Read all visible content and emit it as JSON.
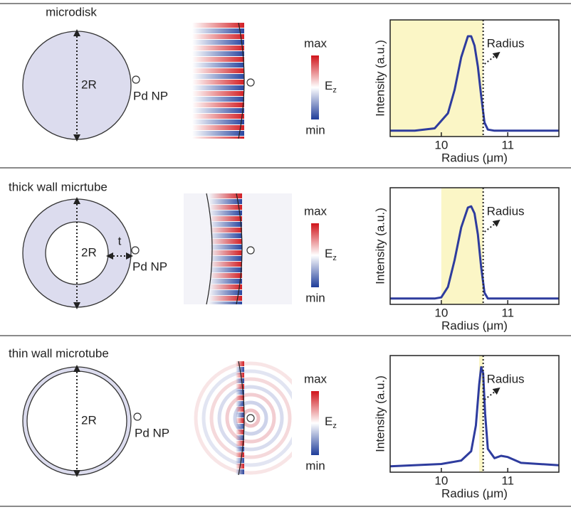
{
  "panels": [
    {
      "title": "microdisk",
      "diameter_label": "2R",
      "np_label": "Pd NP",
      "colorbar": {
        "max": "max",
        "min": "min",
        "field": "E",
        "field_sub": "z"
      },
      "plot": {
        "type": "line",
        "xlabel": "Radius (μm)",
        "ylabel": "Intensity (a.u.)",
        "marker_label": "Radius",
        "xlim": [
          9.23,
          11.77
        ],
        "ylim": [
          0,
          1
        ],
        "xticks": [
          10,
          11
        ],
        "shade": [
          9.23,
          10.63
        ],
        "marker_x": 10.63,
        "color": "#2e3c9e",
        "x": [
          9.23,
          9.6,
          9.9,
          10.1,
          10.2,
          10.3,
          10.4,
          10.45,
          10.5,
          10.55,
          10.6,
          10.65,
          10.7,
          10.8,
          11.0,
          11.77
        ],
        "y": [
          0.05,
          0.05,
          0.07,
          0.2,
          0.4,
          0.68,
          0.86,
          0.86,
          0.78,
          0.6,
          0.35,
          0.12,
          0.06,
          0.05,
          0.05,
          0.05
        ]
      }
    },
    {
      "title": "thick wall micrtube",
      "diameter_label": "2R",
      "wall_label": "t",
      "np_label": "Pd NP",
      "colorbar": {
        "max": "max",
        "min": "min",
        "field": "E",
        "field_sub": "z"
      },
      "plot": {
        "type": "line",
        "xlabel": "Radius (μm)",
        "ylabel": "Intensity (a.u.)",
        "marker_label": "Radius",
        "xlim": [
          9.23,
          11.77
        ],
        "ylim": [
          0,
          1
        ],
        "xticks": [
          10,
          11
        ],
        "shade": [
          10.0,
          10.63
        ],
        "marker_x": 10.63,
        "color": "#2e3c9e",
        "x": [
          9.23,
          9.9,
          10.0,
          10.1,
          10.2,
          10.3,
          10.4,
          10.45,
          10.5,
          10.55,
          10.6,
          10.65,
          10.7,
          11.77
        ],
        "y": [
          0.05,
          0.05,
          0.06,
          0.15,
          0.38,
          0.66,
          0.83,
          0.84,
          0.78,
          0.6,
          0.32,
          0.1,
          0.05,
          0.05
        ]
      }
    },
    {
      "title": "thin wall microtube",
      "diameter_label": "2R",
      "np_label": "Pd NP",
      "colorbar": {
        "max": "max",
        "min": "min",
        "field": "E",
        "field_sub": "z"
      },
      "plot": {
        "type": "line",
        "xlabel": "Radius (μm)",
        "ylabel": "Intensity (a.u.)",
        "marker_label": "Radius",
        "xlim": [
          9.23,
          11.77
        ],
        "ylim": [
          0,
          1
        ],
        "xticks": [
          10,
          11
        ],
        "shade": [
          10.57,
          10.63
        ],
        "marker_x": 10.63,
        "color": "#2e3c9e",
        "x": [
          9.23,
          10.0,
          10.3,
          10.45,
          10.52,
          10.57,
          10.6,
          10.63,
          10.66,
          10.7,
          10.8,
          10.9,
          11.0,
          11.2,
          11.77
        ],
        "y": [
          0.05,
          0.07,
          0.1,
          0.18,
          0.4,
          0.75,
          0.9,
          0.85,
          0.5,
          0.2,
          0.12,
          0.14,
          0.13,
          0.08,
          0.06
        ]
      }
    }
  ]
}
